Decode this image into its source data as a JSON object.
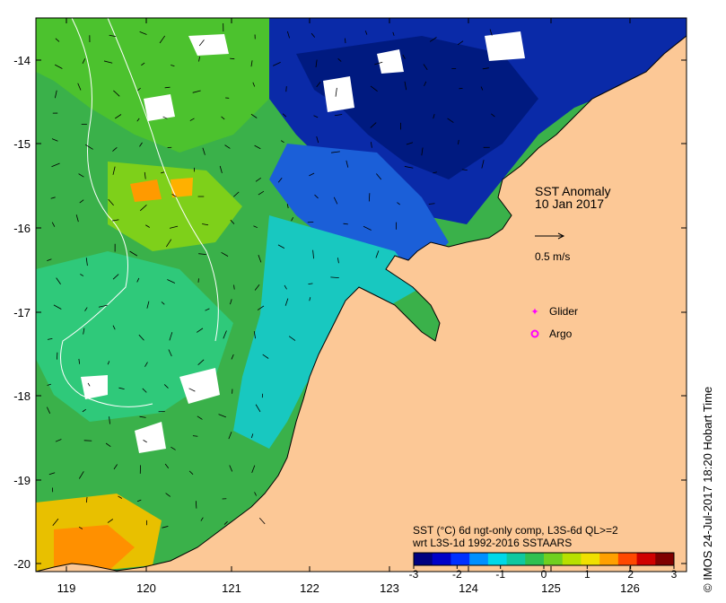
{
  "map": {
    "overlay": {
      "title_line1": "SST Anomaly",
      "title_line2": "10 Jan 2017",
      "vector_scale_label": "0.5 m/s",
      "legend": [
        {
          "label": "Glider",
          "marker": "plus-star",
          "color": "#ff00ff"
        },
        {
          "label": "Argo",
          "marker": "circle-ring",
          "color": "#ff00ff"
        }
      ]
    },
    "lat_ticks": [
      "-14",
      "-15",
      "-16",
      "-17",
      "-18",
      "-19",
      "-20"
    ],
    "lon_ticks": [
      "119",
      "120",
      "121",
      "122",
      "123",
      "124",
      "125",
      "126"
    ],
    "colorbar": {
      "caption_line1": "SST (°C) 6d ngt-only comp, L3S-6d QL>=2",
      "caption_line2": "wrt L3S-1d 1992-2016 SSTAARS",
      "tick_labels": [
        "-3",
        "-2",
        "-1",
        "0",
        "1",
        "2",
        "3"
      ],
      "colors": [
        "#00007f",
        "#0000c8",
        "#0030ff",
        "#0090ff",
        "#00d8e8",
        "#10c8a0",
        "#30c050",
        "#70d020",
        "#b8e000",
        "#f0e000",
        "#ffa000",
        "#ff4800",
        "#d00000",
        "#800000"
      ]
    },
    "credit": "© IMOS 24-Jul-2017 18:20 Hobart Time",
    "land_color": "#fcc896"
  }
}
